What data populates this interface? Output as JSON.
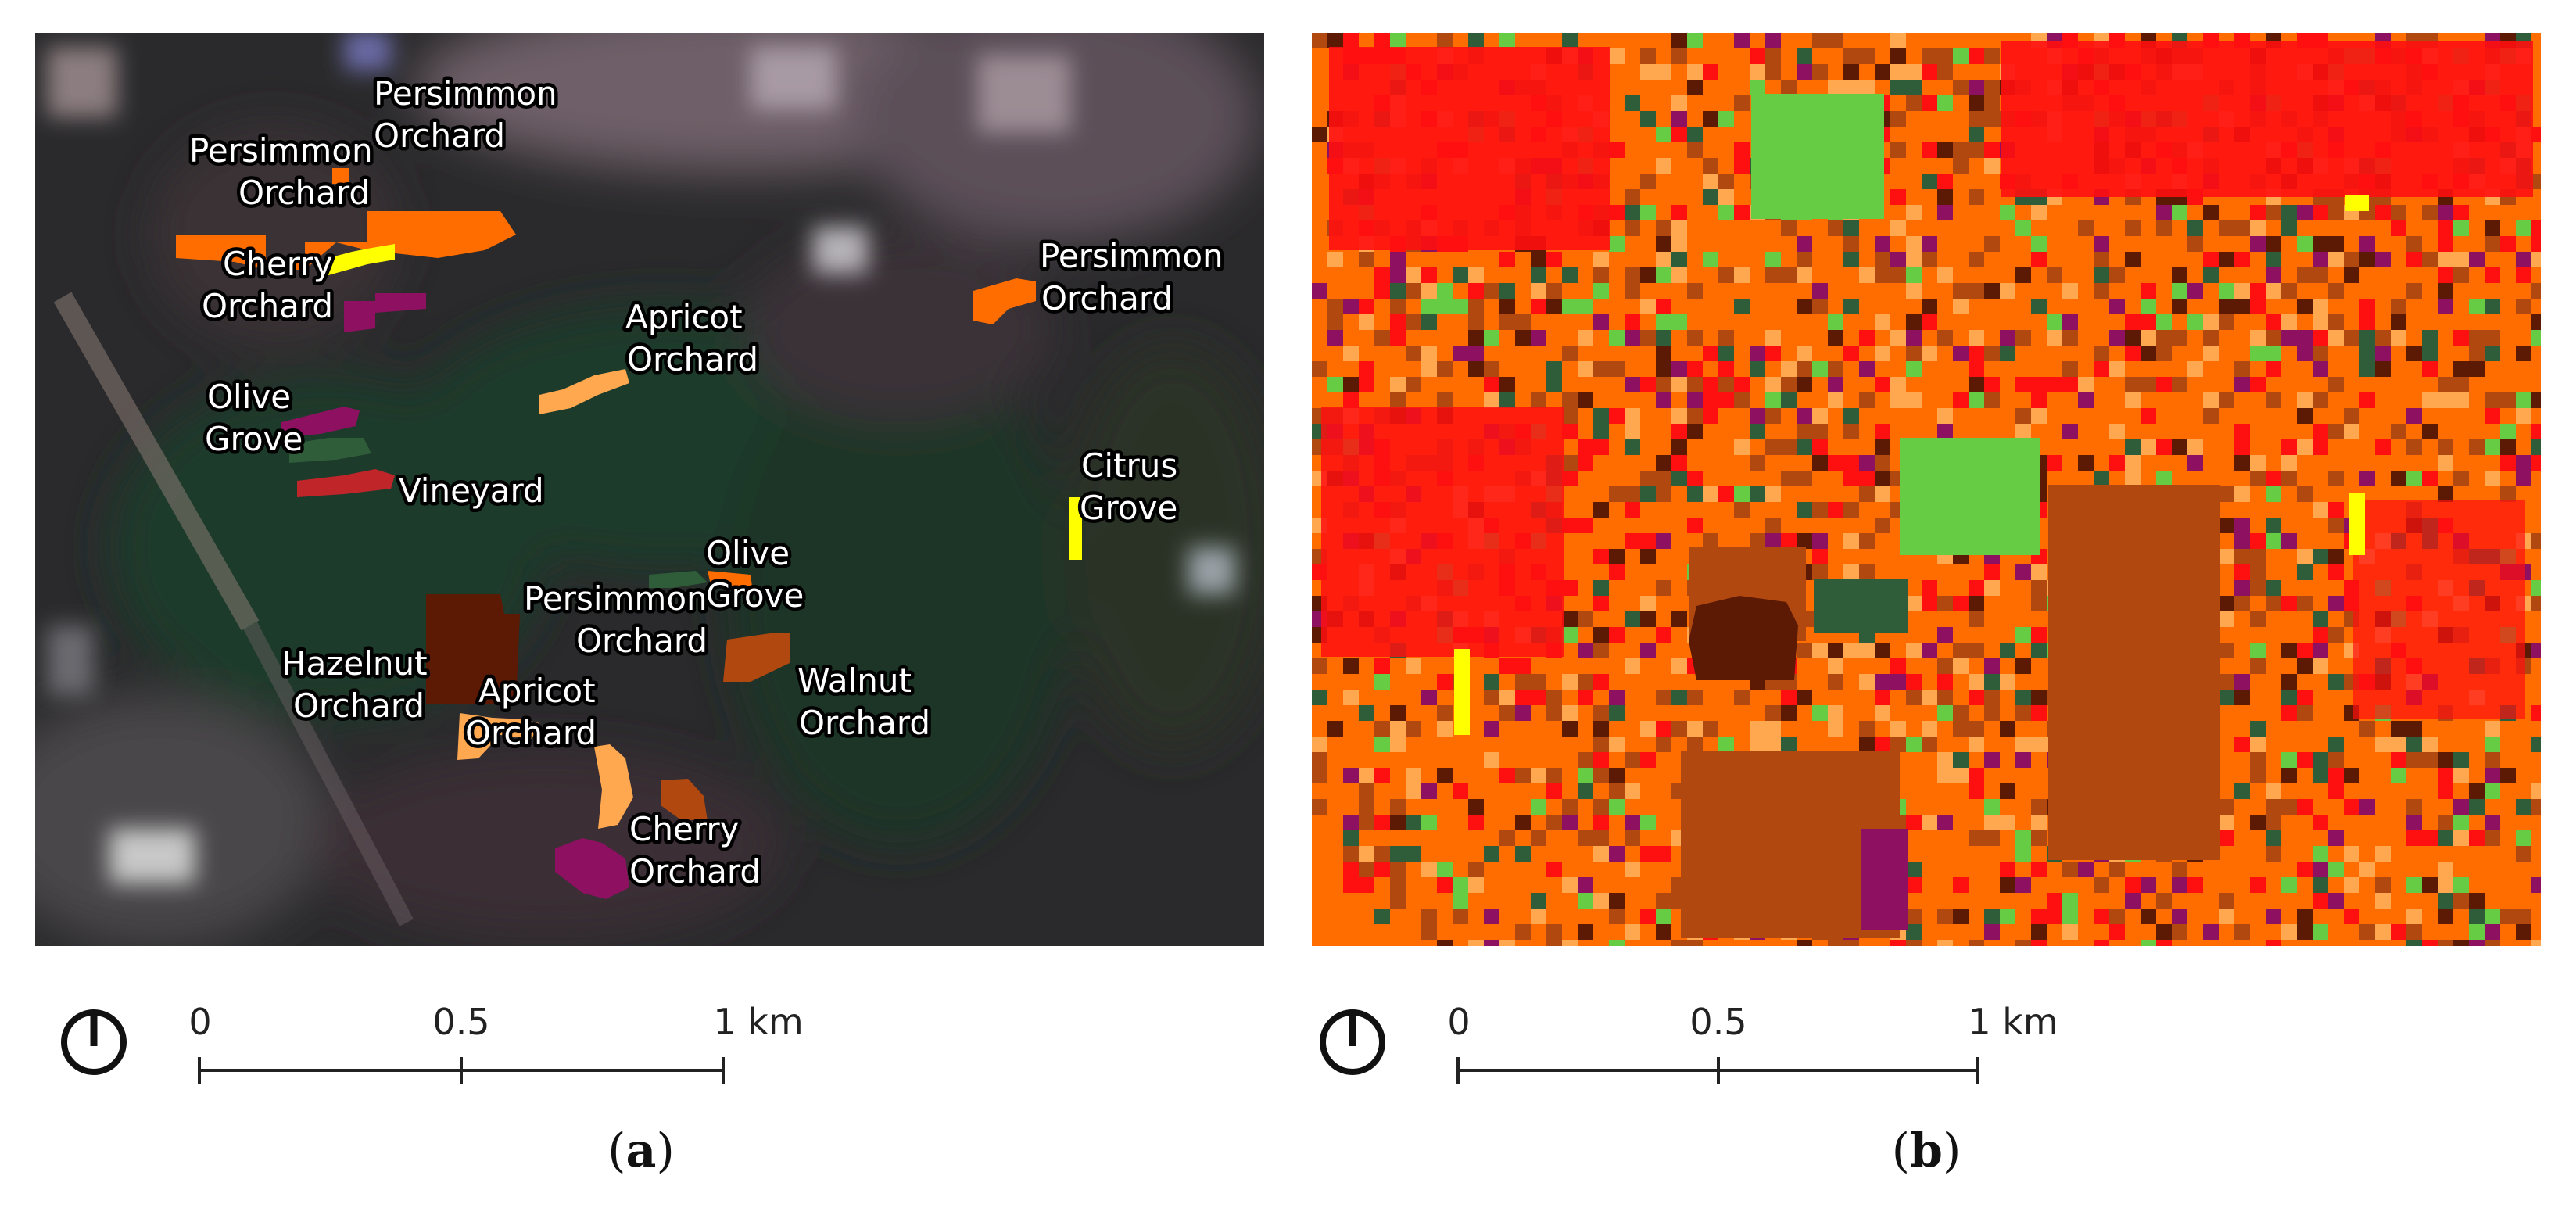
{
  "panels": [
    {
      "caption_open": "(",
      "caption_letter": "a",
      "caption_close": ")",
      "labels": [
        {
          "line1": "Persimmon",
          "line2": "Orchard"
        },
        {
          "line1": "Persimmon",
          "line2": "Orchard"
        },
        {
          "line1": "Cherry",
          "line2": "Orchard"
        },
        {
          "line1": "Persimmon",
          "line2": "Orchard"
        },
        {
          "line1": "Apricot",
          "line2": "Orchard"
        },
        {
          "line1": "Olive",
          "line2": "Grove"
        },
        {
          "line1": "Vineyard",
          "line2": ""
        },
        {
          "line1": "Citrus",
          "line2": "Grove"
        },
        {
          "line1": "Olive",
          "line2": "Grove"
        },
        {
          "line1": "Persimmon",
          "line2": "Orchard"
        },
        {
          "line1": "Hazelnut",
          "line2": "Orchard"
        },
        {
          "line1": "Walnut",
          "line2": "Orchard"
        },
        {
          "line1": "Apricot",
          "line2": "Orchard"
        },
        {
          "line1": "Cherry",
          "line2": "Orchard"
        }
      ],
      "scale_bar": {
        "ticks": [
          "0",
          "0.5",
          "1 km"
        ]
      }
    },
    {
      "caption_open": "(",
      "caption_letter": "b",
      "caption_close": ")",
      "scale_bar": {
        "ticks": [
          "0",
          "0.5",
          "1 km"
        ]
      }
    }
  ],
  "class_colors": {
    "persimmon_orchard": "#ff6d00",
    "cherry_orchard": "#ffff00",
    "apricot_orchard": "#ffa850",
    "olive_grove": "#2f5d3a",
    "vineyard": "#c0252a",
    "citrus_grove": "#ffff00",
    "hazelnut_orchard": "#5c1a05",
    "walnut_orchard": "#b04810",
    "plum": "#8e1061",
    "grassland": "#66cc44",
    "urban": "#ff1010"
  },
  "north_arrow_icon": "north-arrow-icon"
}
